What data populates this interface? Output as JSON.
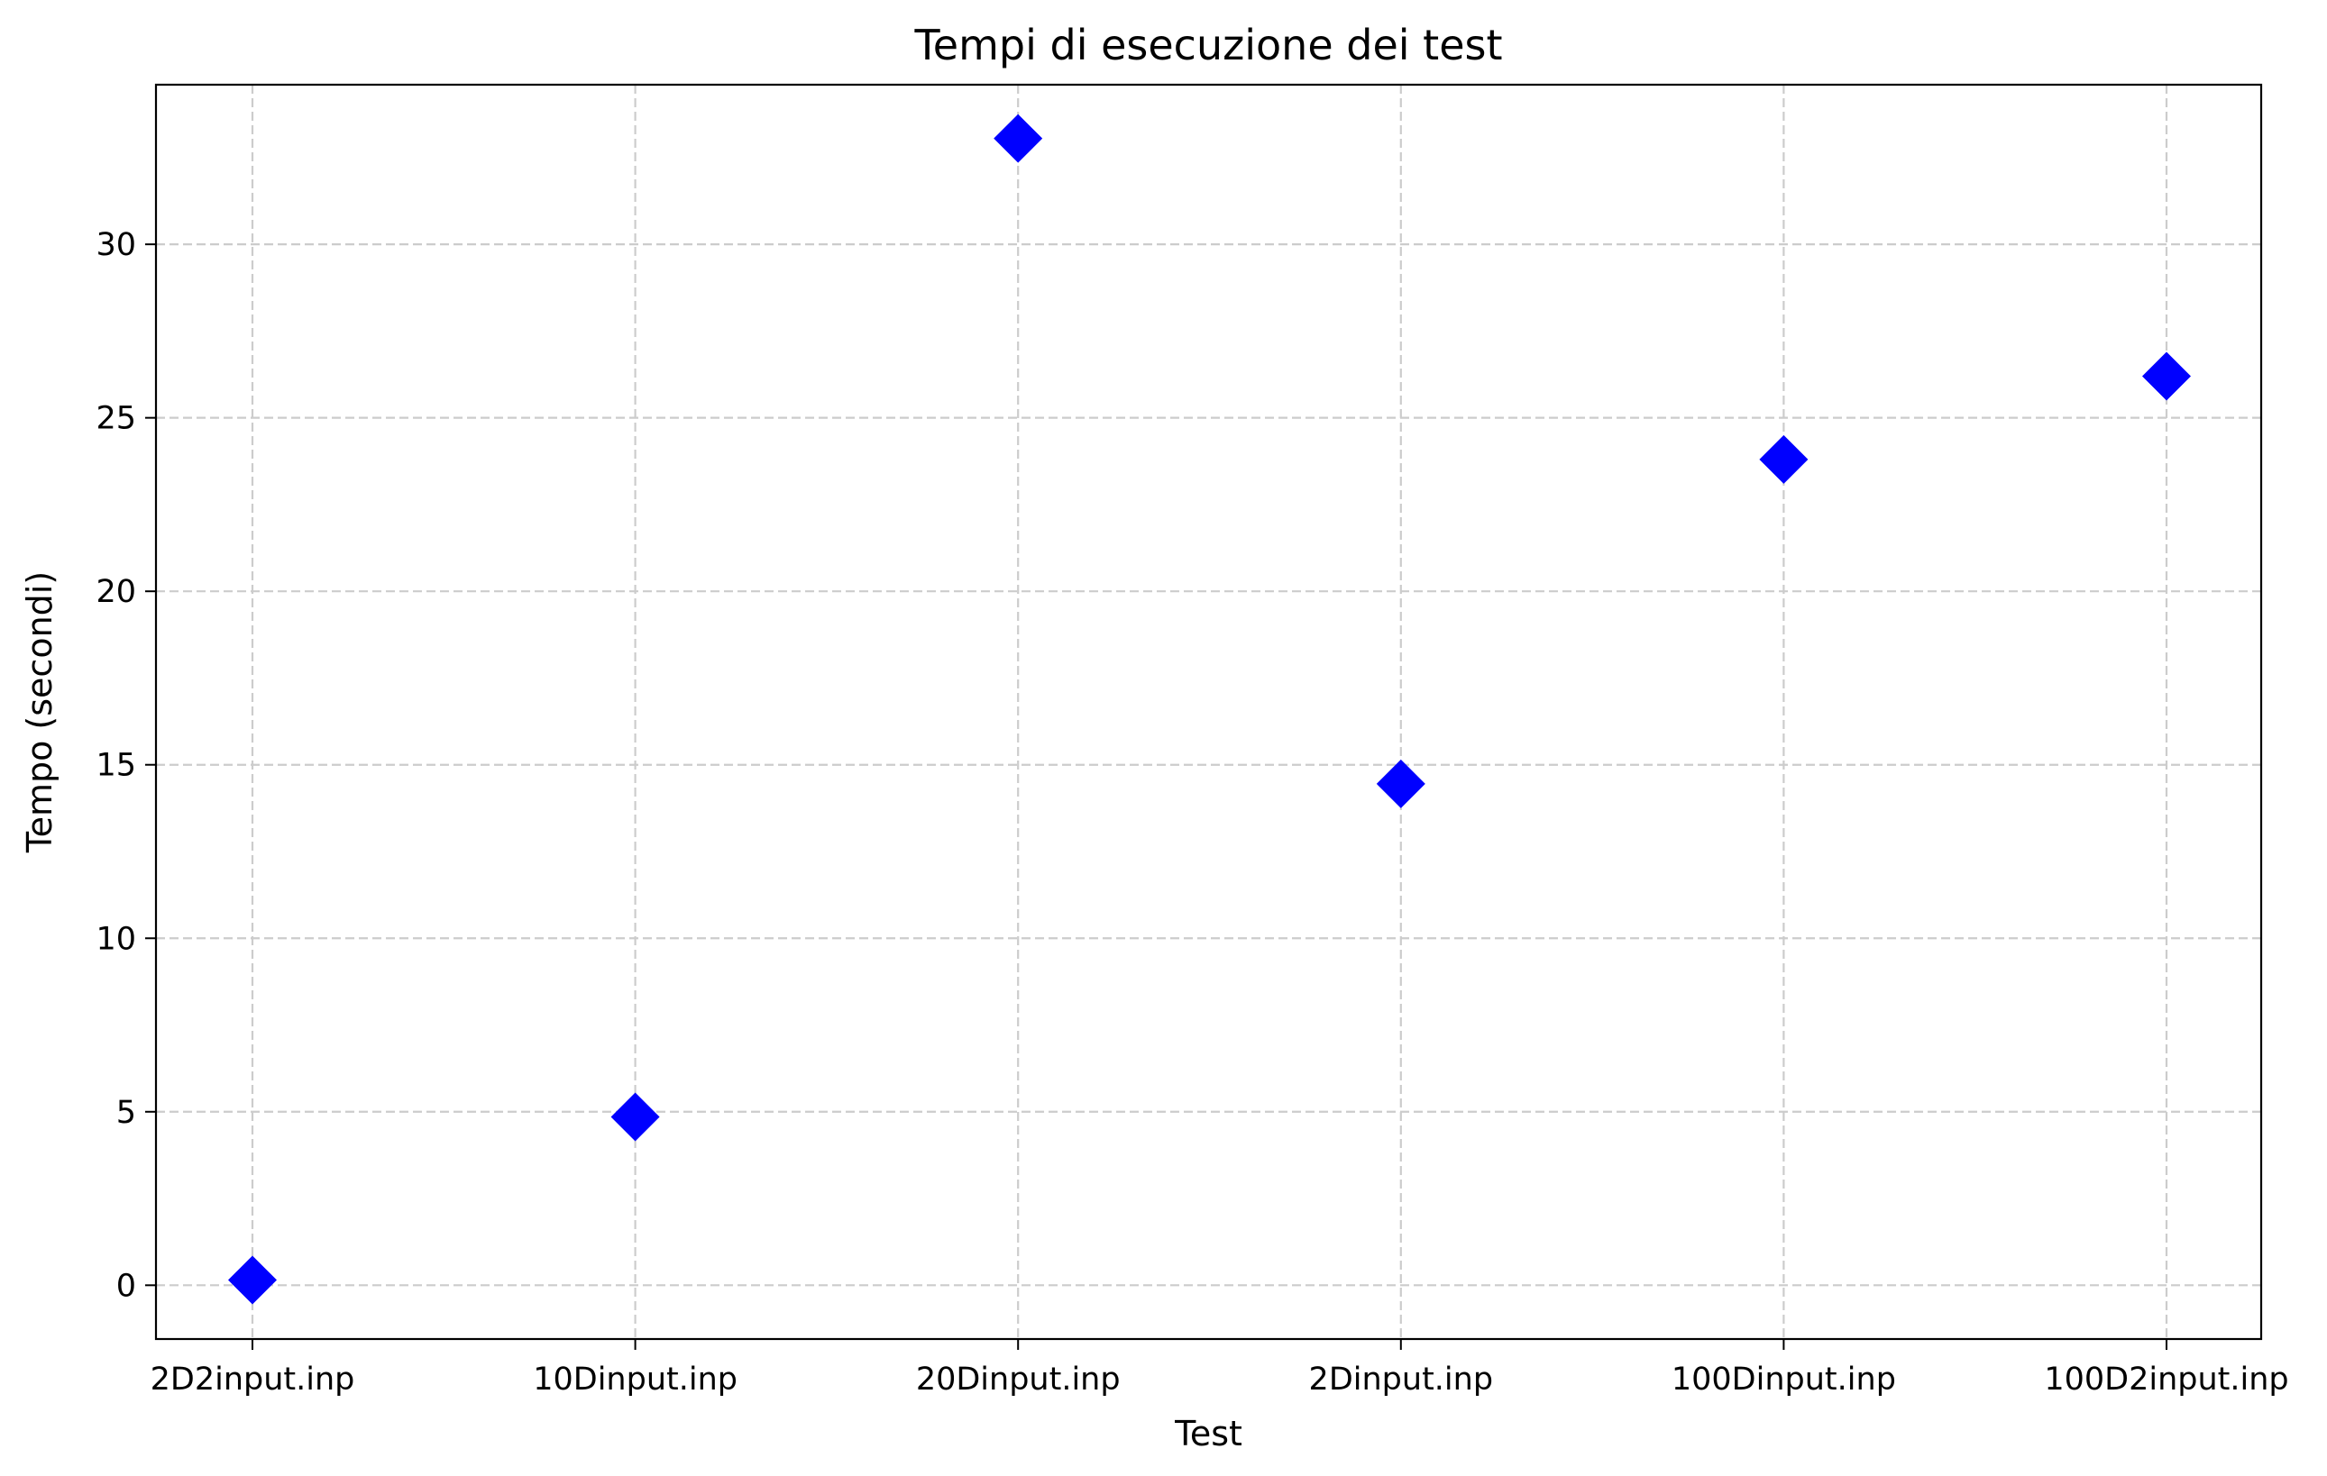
{
  "chart_data": {
    "type": "scatter",
    "title": "Tempi di esecuzione dei test",
    "xlabel": "Test",
    "ylabel": "Tempo (secondi)",
    "categories": [
      "2D2input.inp",
      "10Dinput.inp",
      "20Dinput.inp",
      "2Dinput.inp",
      "100Dinput.inp",
      "100D2input.inp"
    ],
    "values": [
      0.15,
      4.85,
      33.05,
      14.45,
      23.8,
      26.2
    ],
    "ylim": [
      -1.55,
      34.6
    ],
    "yticks": [
      0,
      5,
      10,
      15,
      20,
      25,
      30
    ],
    "grid": true,
    "marker": "diamond",
    "colors": {
      "marker": "#0000ff"
    }
  }
}
